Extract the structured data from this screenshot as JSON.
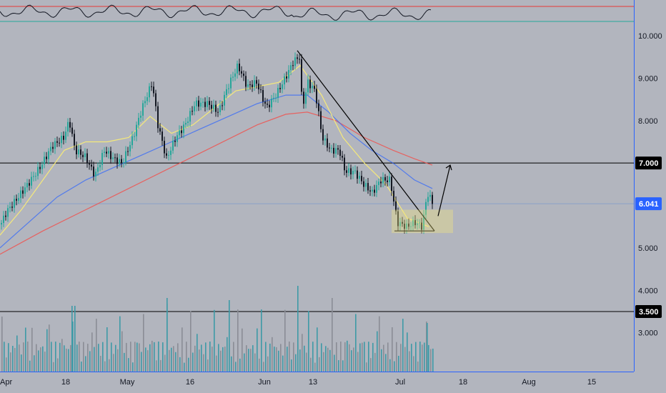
{
  "chart_data": {
    "type": "candlestick",
    "price_axis": {
      "ticks": [
        "10.000",
        "9.000",
        "8.000",
        "7.000",
        "6.041",
        "5.000",
        "4.000",
        "3.500",
        "3.000"
      ],
      "ylim": [
        2.0,
        10.6
      ]
    },
    "time_axis": {
      "ticks": [
        "Apr",
        "18",
        "May",
        "16",
        "Jun",
        "13",
        "Jul",
        "18",
        "Aug",
        "15"
      ]
    },
    "horizontal_levels": [
      {
        "value": 7.0,
        "label": "7.000",
        "color": "#000000"
      },
      {
        "value": 3.5,
        "label": "3.500",
        "color": "#000000"
      }
    ],
    "last_price": {
      "value": 6.041,
      "label": "6.041",
      "color": "#2962ff"
    },
    "rsi_levels": {
      "upper_color": "#e53935",
      "lower_color": "#26a69a"
    },
    "price_path": [
      [
        0,
        5.55
      ],
      [
        8,
        5.85
      ],
      [
        20,
        6.1
      ],
      [
        38,
        6.5
      ],
      [
        55,
        6.9
      ],
      [
        72,
        7.4
      ],
      [
        88,
        7.6
      ],
      [
        96,
        8.0
      ],
      [
        104,
        7.3
      ],
      [
        118,
        7.15
      ],
      [
        132,
        6.7
      ],
      [
        145,
        7.3
      ],
      [
        158,
        7.1
      ],
      [
        170,
        7.0
      ],
      [
        185,
        7.6
      ],
      [
        198,
        8.3
      ],
      [
        212,
        8.9
      ],
      [
        220,
        7.9
      ],
      [
        232,
        7.1
      ],
      [
        245,
        7.6
      ],
      [
        258,
        7.9
      ],
      [
        272,
        8.4
      ],
      [
        290,
        8.4
      ],
      [
        305,
        8.2
      ],
      [
        318,
        8.8
      ],
      [
        332,
        9.3
      ],
      [
        345,
        8.8
      ],
      [
        358,
        8.9
      ],
      [
        372,
        8.3
      ],
      [
        385,
        8.6
      ],
      [
        398,
        9.0
      ],
      [
        410,
        9.4
      ],
      [
        418,
        9.5
      ],
      [
        422,
        8.3
      ],
      [
        430,
        8.9
      ],
      [
        440,
        8.7
      ],
      [
        450,
        7.6
      ],
      [
        462,
        7.3
      ],
      [
        474,
        7.3
      ],
      [
        482,
        6.8
      ],
      [
        495,
        6.8
      ],
      [
        508,
        6.5
      ],
      [
        520,
        6.3
      ],
      [
        532,
        6.6
      ],
      [
        545,
        6.6
      ],
      [
        555,
        5.6
      ],
      [
        568,
        5.5
      ],
      [
        580,
        5.6
      ],
      [
        590,
        5.5
      ],
      [
        597,
        6.3
      ],
      [
        605,
        6.04
      ]
    ],
    "ma_fast": [
      [
        0,
        5.3
      ],
      [
        30,
        5.9
      ],
      [
        60,
        6.6
      ],
      [
        90,
        7.3
      ],
      [
        120,
        7.5
      ],
      [
        150,
        7.5
      ],
      [
        180,
        7.6
      ],
      [
        210,
        8.1
      ],
      [
        240,
        7.7
      ],
      [
        270,
        7.9
      ],
      [
        300,
        8.3
      ],
      [
        330,
        8.7
      ],
      [
        360,
        8.8
      ],
      [
        390,
        8.9
      ],
      [
        420,
        9.3
      ],
      [
        450,
        8.6
      ],
      [
        480,
        7.6
      ],
      [
        510,
        7.0
      ],
      [
        540,
        6.5
      ],
      [
        570,
        5.7
      ],
      [
        600,
        5.5
      ]
    ],
    "ma_mid": [
      [
        0,
        5.0
      ],
      [
        40,
        5.6
      ],
      [
        80,
        6.2
      ],
      [
        120,
        6.6
      ],
      [
        160,
        6.9
      ],
      [
        200,
        7.2
      ],
      [
        240,
        7.5
      ],
      [
        280,
        7.8
      ],
      [
        320,
        8.1
      ],
      [
        360,
        8.4
      ],
      [
        400,
        8.6
      ],
      [
        430,
        8.6
      ],
      [
        460,
        8.2
      ],
      [
        490,
        7.7
      ],
      [
        520,
        7.3
      ],
      [
        550,
        7.0
      ],
      [
        580,
        6.6
      ],
      [
        605,
        6.4
      ]
    ],
    "ma_slow": [
      [
        0,
        4.85
      ],
      [
        60,
        5.4
      ],
      [
        120,
        5.9
      ],
      [
        180,
        6.4
      ],
      [
        240,
        6.9
      ],
      [
        300,
        7.4
      ],
      [
        360,
        7.9
      ],
      [
        400,
        8.15
      ],
      [
        430,
        8.2
      ],
      [
        470,
        8.0
      ],
      [
        510,
        7.6
      ],
      [
        550,
        7.3
      ],
      [
        580,
        7.1
      ],
      [
        605,
        6.95
      ]
    ],
    "annotations": [
      {
        "type": "trendline",
        "from": [
          416,
          9.65
        ],
        "to": [
          608,
          5.4
        ]
      },
      {
        "type": "support",
        "from": [
          552,
          5.4
        ],
        "to": [
          608,
          5.4
        ]
      },
      {
        "type": "zone",
        "x0": 548,
        "x1": 634,
        "y0": 5.35,
        "y1": 5.9
      },
      {
        "type": "arrow",
        "from": [
          613,
          5.75
        ],
        "to": [
          630,
          6.95
        ]
      }
    ]
  }
}
